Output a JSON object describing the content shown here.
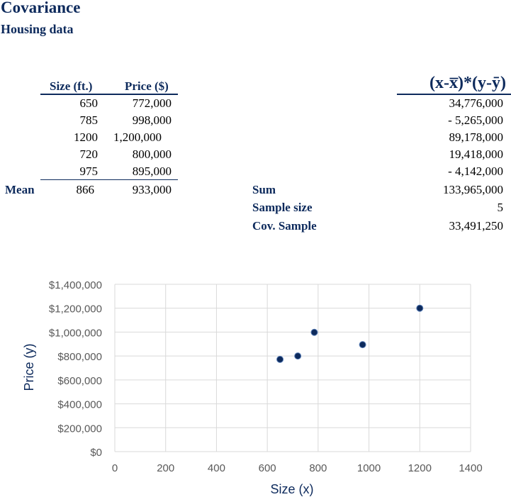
{
  "title": "Covariance",
  "subtitle": "Housing data",
  "table": {
    "col_size": "Size (ft.)",
    "col_price": "Price ($)",
    "rows": [
      {
        "size": "650",
        "price": "772,000"
      },
      {
        "size": "785",
        "price": "998,000"
      },
      {
        "size": "1200",
        "price": "1,200,000"
      },
      {
        "size": "720",
        "price": "800,000"
      },
      {
        "size": "975",
        "price": "895,000"
      }
    ],
    "mean_label": "Mean",
    "mean_size": "866",
    "mean_price": "933,000"
  },
  "products": {
    "header": "(x-x̅)*(y-ȳ)",
    "values": [
      "34,776,000",
      "- 5,265,000",
      "89,178,000",
      "19,418,000",
      "- 4,142,000"
    ]
  },
  "summary": {
    "sum_label": "Sum",
    "sum_value": "133,965,000",
    "n_label": "Sample size",
    "n_value": "5",
    "cov_label": "Cov. Sample",
    "cov_value": "33,491,250"
  },
  "chart_data": {
    "type": "scatter",
    "x": [
      650,
      785,
      1200,
      720,
      975
    ],
    "y": [
      772000,
      998000,
      1200000,
      800000,
      895000
    ],
    "xlabel": "Size (x)",
    "ylabel": "Price (y)",
    "xlim": [
      0,
      1400
    ],
    "ylim": [
      0,
      1400000
    ],
    "xticks": [
      "0",
      "200",
      "400",
      "600",
      "800",
      "1000",
      "1200",
      "1400"
    ],
    "yticks": [
      "$0",
      "$200,000",
      "$400,000",
      "$600,000",
      "$800,000",
      "$1,000,000",
      "$1,200,000",
      "$1,400,000"
    ],
    "grid": true,
    "marker_color": "#0d2a5c"
  }
}
